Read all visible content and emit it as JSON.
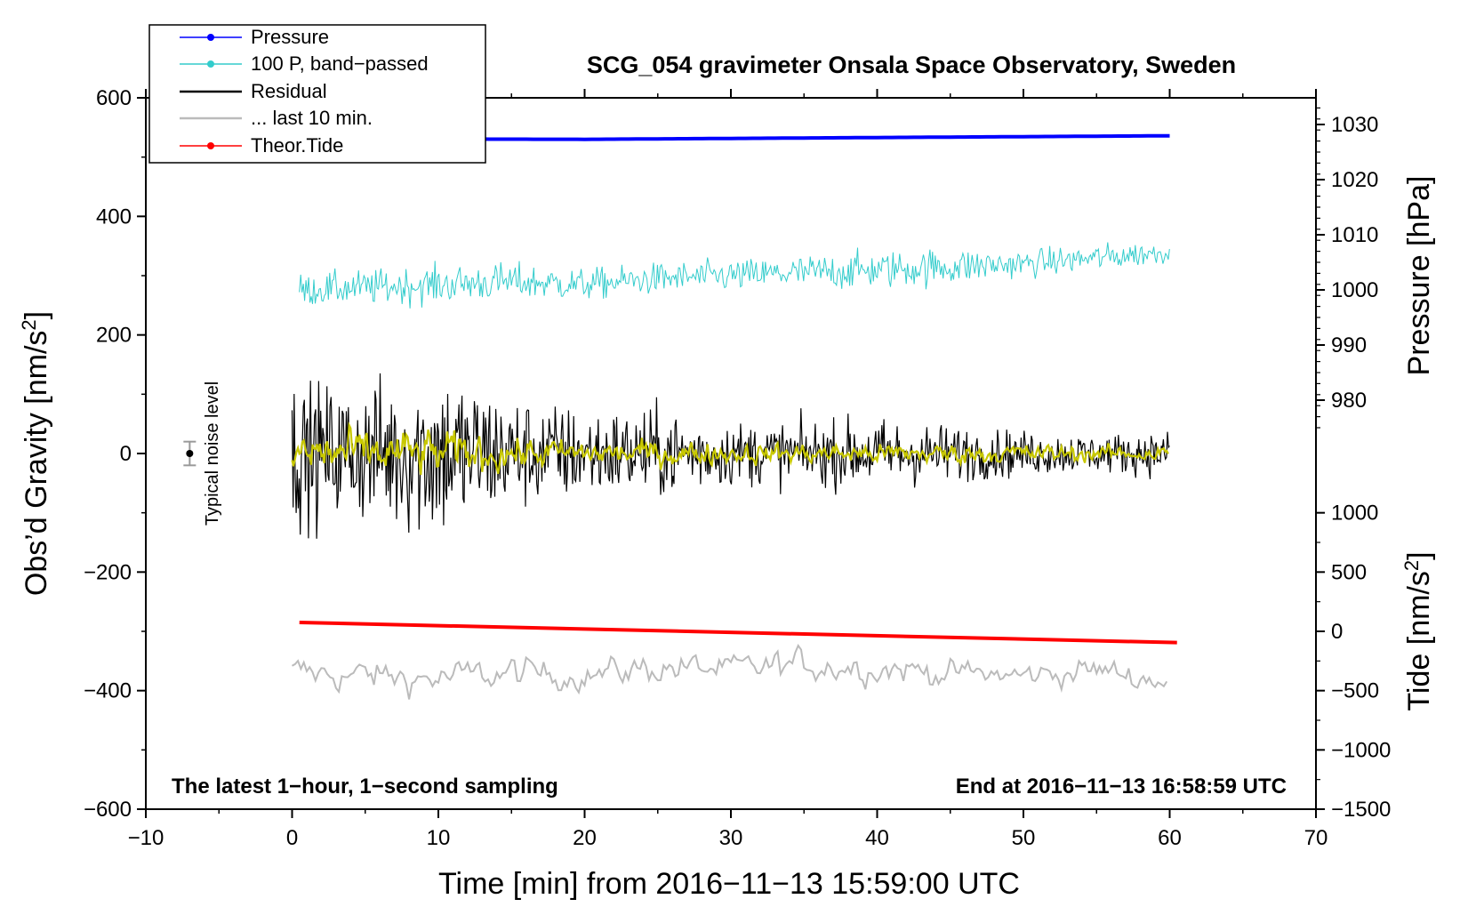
{
  "chart_data": {
    "type": "line",
    "title": "SCG_054 gravimeter Onsala Space Observatory, Sweden",
    "xlabel": "Time [min] from 2016−11−13 15:59:00 UTC",
    "ylabel_left_main": "Obs’d Gravity [nm/s",
    "ylabel_left_sup": "2",
    "ylabel_left_close": "]",
    "ylabel_right_pressure": "Pressure [hPa]",
    "ylabel_right_tide_main": "Tide [nm/s",
    "ylabel_right_tide_sup": "2",
    "ylabel_right_tide_close": "]",
    "xlim": [
      -10,
      70
    ],
    "ylim": [
      -600,
      600
    ],
    "xticks": [
      -10,
      0,
      10,
      20,
      30,
      40,
      50,
      60,
      70
    ],
    "xtick_labels": [
      "−10",
      "0",
      "10",
      "20",
      "30",
      "40",
      "50",
      "60",
      "70"
    ],
    "yticks": [
      600,
      400,
      200,
      0,
      -200,
      -400,
      -600
    ],
    "ytick_labels": [
      "600",
      "400",
      "200",
      "0",
      "−200",
      "−400",
      "−600"
    ],
    "pressure_axis": {
      "ticks": [
        1030,
        1020,
        1010,
        1000,
        990,
        980
      ],
      "tick_labels": [
        "1030",
        "1020",
        "1010",
        "1000",
        "990",
        "980"
      ],
      "gravity_at_1030": 555,
      "gravity_per_hpa": 9.3
    },
    "tide_axis": {
      "ticks": [
        1000,
        500,
        0,
        -500,
        -1000,
        -1500
      ],
      "tick_labels": [
        "1000",
        "500",
        "0",
        "−500",
        "−1000",
        "−1500"
      ],
      "gravity_at_0": -300,
      "gravity_per_unit": 0.2
    },
    "annotations": {
      "left": "The latest 1−hour, 1−second sampling",
      "right": "End at 2016−11−13 16:58:59 UTC",
      "noise": "Typical noise level"
    },
    "noise_marker": {
      "x": -7,
      "y": 0,
      "err": 20
    },
    "legend": {
      "position": "top-left",
      "entries": [
        {
          "label": "Pressure",
          "color": "#0000ff",
          "marker": true
        },
        {
          "label": "100 P, band−passed",
          "color": "#33cccc",
          "marker": true
        },
        {
          "label": "Residual",
          "color": "#000000",
          "marker": false
        },
        {
          "label": "... last 10 min.",
          "color": "#bbbbbb",
          "marker": false
        },
        {
          "label": "Theor.Tide",
          "color": "#ff0000",
          "marker": true
        }
      ]
    },
    "series": [
      {
        "name": "Pressure",
        "color": "#0000ff",
        "x": [
          0,
          10,
          20,
          30,
          40,
          50,
          60
        ],
        "values": [
          531,
          530.5,
          530,
          531.5,
          533,
          534.5,
          536
        ]
      },
      {
        "name": "100 P, band−passed",
        "color": "#33cccc",
        "x": [
          0,
          5,
          10,
          15,
          20,
          25,
          30,
          35,
          40,
          45,
          50,
          55,
          60
        ],
        "mean": [
          275,
          280,
          285,
          290,
          285,
          295,
          300,
          305,
          310,
          315,
          320,
          330,
          340
        ],
        "amplitude": [
          25,
          28,
          30,
          30,
          25,
          25,
          25,
          28,
          30,
          30,
          22,
          22,
          18
        ]
      },
      {
        "name": "Residual",
        "color": "#000000",
        "x": [
          0,
          5,
          10,
          15,
          20,
          25,
          30,
          35,
          40,
          45,
          50,
          55,
          60
        ],
        "amplitude": [
          110,
          110,
          140,
          90,
          70,
          70,
          50,
          50,
          55,
          45,
          35,
          30,
          35
        ]
      },
      {
        "name": "Residual smoothed",
        "color": "#c8c800",
        "x": [
          0,
          5,
          10,
          15,
          20,
          25,
          30,
          35,
          40,
          45,
          50,
          55,
          60
        ],
        "amplitude": [
          40,
          35,
          35,
          25,
          20,
          20,
          15,
          15,
          15,
          15,
          15,
          12,
          12
        ]
      },
      {
        "name": "Theor.Tide",
        "color": "#ff0000",
        "x": [
          0.5,
          60.5
        ],
        "values": [
          -285,
          -319
        ]
      },
      {
        "name": "... last 10 min.",
        "color": "#bbbbbb",
        "x": [
          0,
          5,
          10,
          15,
          20,
          25,
          30,
          35,
          40,
          45,
          50,
          55,
          60
        ],
        "mean": [
          -370,
          -375,
          -380,
          -370,
          -375,
          -360,
          -365,
          -355,
          -360,
          -370,
          -375,
          -365,
          -385
        ],
        "amplitude": [
          25,
          25,
          25,
          25,
          20,
          25,
          20,
          25,
          25,
          20,
          20,
          20,
          20
        ]
      }
    ]
  }
}
